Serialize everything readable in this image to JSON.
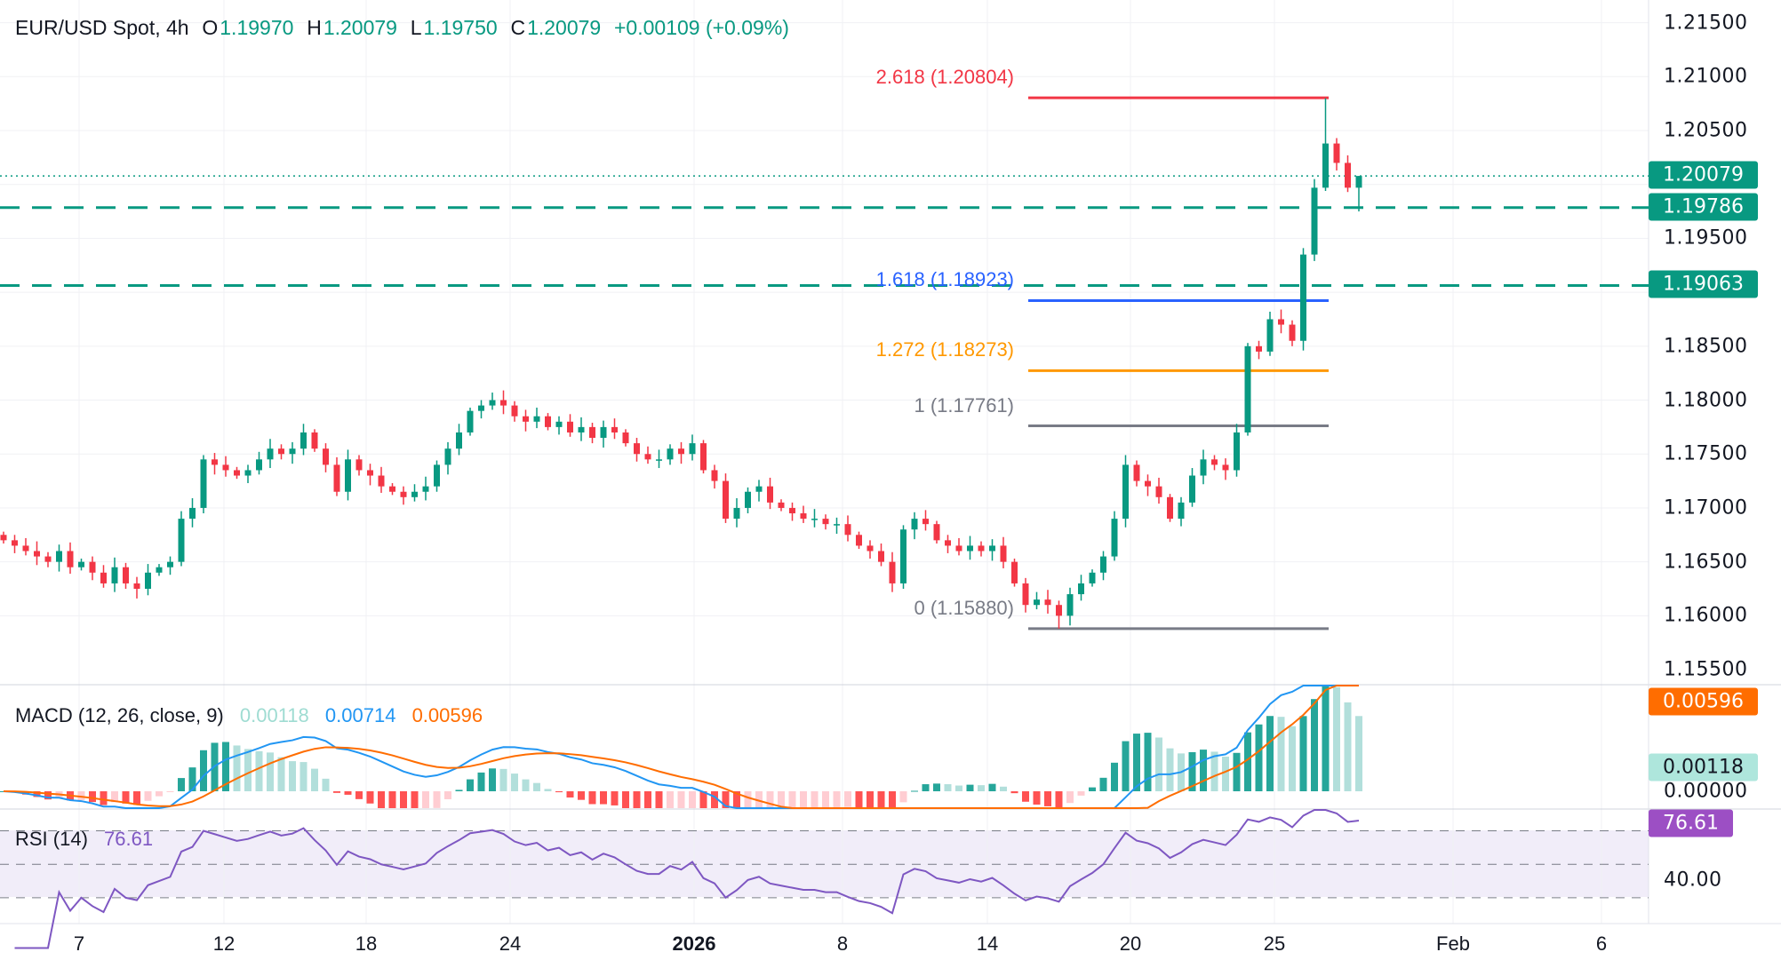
{
  "header": {
    "symbol": "EUR/USD Spot, 4h",
    "o_label": "O",
    "open": "1.19970",
    "h_label": "H",
    "high": "1.20079",
    "l_label": "L",
    "low": "1.19750",
    "c_label": "C",
    "close": "1.20079",
    "change": "+0.00109 (+0.09%)"
  },
  "colors": {
    "up": "#089981",
    "down": "#f23645",
    "fib_2618": "#f23645",
    "fib_1618": "#2962ff",
    "fib_1272": "#ff9800",
    "fib_1": "#787b86",
    "fib_0": "#787b86",
    "macd": "#2196f3",
    "signal": "#ff6d00",
    "rsi": "#7e57c2"
  },
  "price_axis": {
    "ticks": [
      "1.21500",
      "1.21000",
      "1.20500",
      "1.19500",
      "1.18500",
      "1.18000",
      "1.17500",
      "1.17000",
      "1.16500",
      "1.16000",
      "1.15500"
    ]
  },
  "badges": {
    "last": "1.20079",
    "level_1": "1.19786",
    "level_2": "1.19063",
    "macd_signal": "0.00596",
    "macd_hist": "0.00118",
    "macd_zero": "0.00000",
    "rsi": "76.61",
    "rsi_40": "40.00"
  },
  "fibonacci": [
    {
      "label": "2.618 (1.20804)",
      "level": 1.20804
    },
    {
      "label": "1.618 (1.18923)",
      "level": 1.18923
    },
    {
      "label": "1.272 (1.18273)",
      "level": 1.18273
    },
    {
      "label": "1 (1.17761)",
      "level": 1.17761
    },
    {
      "label": "0 (1.15880)",
      "level": 1.1588
    }
  ],
  "horizontal_levels": [
    1.19786,
    1.19063
  ],
  "macd": {
    "title": "MACD (12, 26, close, 9)",
    "hist": "0.00118",
    "macd": "0.00714",
    "signal": "0.00596"
  },
  "rsi": {
    "title": "RSI (14)",
    "value": "76.61"
  },
  "time_axis": [
    "7",
    "12",
    "18",
    "24",
    "2026",
    "8",
    "14",
    "20",
    "25",
    "Feb",
    "6"
  ],
  "closes": [
    1.167,
    1.1665,
    1.166,
    1.1655,
    1.165,
    1.166,
    1.1645,
    1.165,
    1.164,
    1.163,
    1.1645,
    1.163,
    1.1625,
    1.164,
    1.1645,
    1.165,
    1.169,
    1.17,
    1.1745,
    1.174,
    1.1735,
    1.173,
    1.1735,
    1.1745,
    1.1755,
    1.175,
    1.1755,
    1.177,
    1.1755,
    1.174,
    1.1715,
    1.1745,
    1.1735,
    1.173,
    1.172,
    1.1715,
    1.171,
    1.1715,
    1.172,
    1.174,
    1.1755,
    1.177,
    1.179,
    1.1795,
    1.18,
    1.1795,
    1.1785,
    1.178,
    1.1785,
    1.1775,
    1.178,
    1.177,
    1.1775,
    1.1765,
    1.1775,
    1.177,
    1.176,
    1.175,
    1.1745,
    1.1745,
    1.1755,
    1.175,
    1.176,
    1.1735,
    1.1725,
    1.169,
    1.17,
    1.1715,
    1.172,
    1.1705,
    1.17,
    1.1695,
    1.169,
    1.169,
    1.1685,
    1.1685,
    1.1675,
    1.1665,
    1.166,
    1.165,
    1.163,
    1.168,
    1.169,
    1.1685,
    1.167,
    1.1665,
    1.166,
    1.1665,
    1.166,
    1.1665,
    1.165,
    1.163,
    1.161,
    1.1615,
    1.161,
    1.16,
    1.162,
    1.163,
    1.164,
    1.1655,
    1.169,
    1.174,
    1.1725,
    1.172,
    1.171,
    1.169,
    1.1705,
    1.173,
    1.1745,
    1.174,
    1.1735,
    1.177,
    1.185,
    1.1845,
    1.1875,
    1.187,
    1.1855,
    1.1935,
    1.1997,
    1.2038,
    1.202,
    1.1997,
    1.20079
  ],
  "extremes": [
    {
      "i": 119,
      "high": 1.208
    },
    {
      "i": 95,
      "low": 1.1588
    },
    {
      "i": 122,
      "high": 1.20079,
      "low": 1.1975
    }
  ]
}
